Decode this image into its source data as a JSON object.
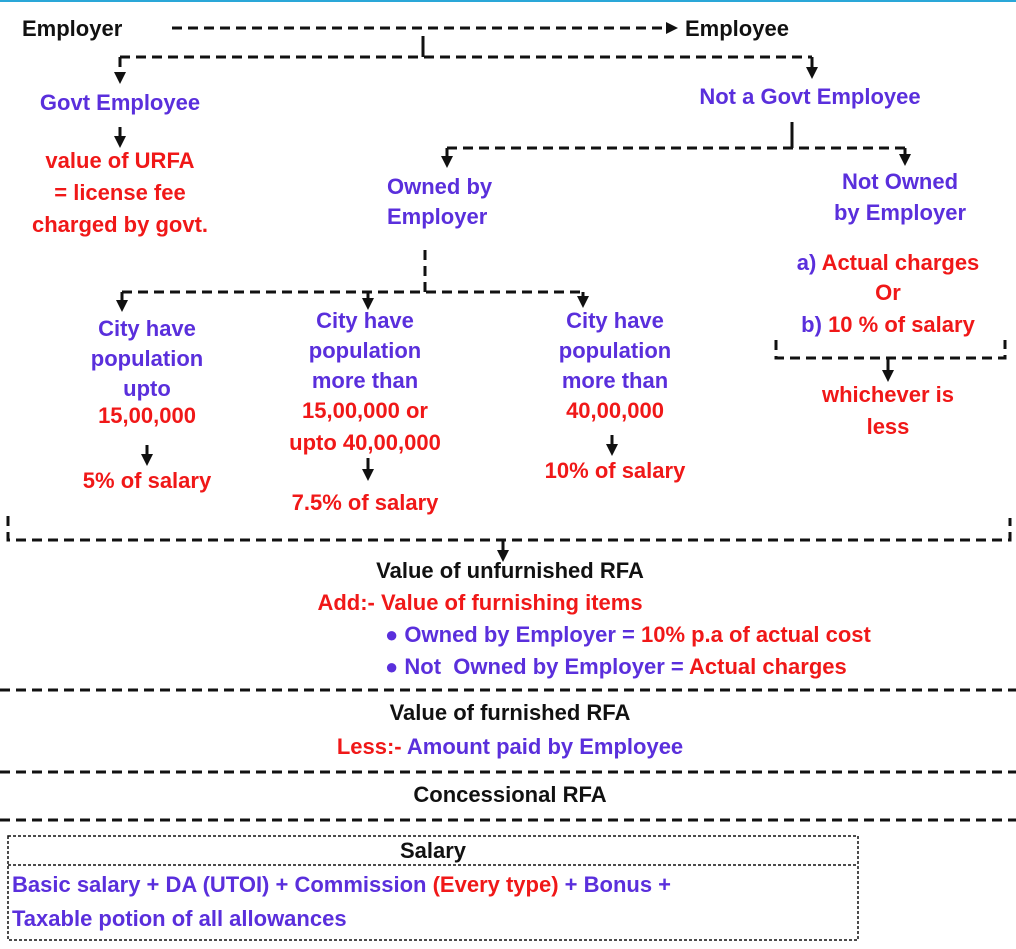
{
  "top": {
    "employer": "Employer",
    "employee": "Employee"
  },
  "govt": {
    "label": "Govt Employee",
    "rule": [
      "value of URFA",
      "= license fee",
      "charged by govt."
    ]
  },
  "not_govt": {
    "label": "Not a Govt Employee"
  },
  "owned": {
    "label": [
      "Owned by",
      "Employer"
    ]
  },
  "not_owned": {
    "label": [
      "Not Owned",
      "by Employer"
    ],
    "option_a": {
      "marker": "a)",
      "text": "Actual charges"
    },
    "or": "Or",
    "option_b": {
      "marker": "b)",
      "text": "10 % of salary"
    },
    "result": [
      "whichever is",
      "less"
    ]
  },
  "cities": [
    {
      "label": [
        "City have",
        "population",
        "upto"
      ],
      "limit": [
        "15,00,000"
      ],
      "rate": "5% of salary"
    },
    {
      "label": [
        "City have",
        "population",
        "more than"
      ],
      "limit": [
        "15,00,000 or",
        "upto 40,00,000"
      ],
      "rate": "7.5% of salary"
    },
    {
      "label": [
        "City have",
        "population",
        "more than"
      ],
      "limit": [
        "40,00,000"
      ],
      "rate": "10% of salary"
    }
  ],
  "unfurnished": {
    "title": "Value of unfurnished RFA",
    "add": "Add:- Value of furnishing items",
    "items": [
      {
        "label": "● Owned by Employer = ",
        "value": "10% p.a of actual cost"
      },
      {
        "label": "● Not  Owned by Employer = ",
        "value": "Actual charges"
      }
    ]
  },
  "furnished": {
    "title": "Value of furnished RFA",
    "less": {
      "label": "Less:-",
      "text": " Amount paid by Employee"
    }
  },
  "concessional": "Concessional RFA",
  "salary": {
    "title": "Salary",
    "line1": [
      "Basic salary + DA (UTOI) + Commission ",
      "(Every type)",
      " + Bonus +"
    ],
    "line2": "Taxable potion of all allowances"
  }
}
